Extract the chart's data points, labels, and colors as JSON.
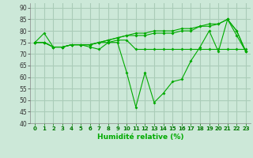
{
  "title": "",
  "xlabel": "Humidité relative (%)",
  "ylabel": "",
  "background_color": "#cce8d8",
  "grid_color": "#aaccb8",
  "line_color": "#00aa00",
  "xlim": [
    -0.5,
    23.5
  ],
  "ylim": [
    40,
    92
  ],
  "yticks": [
    40,
    45,
    50,
    55,
    60,
    65,
    70,
    75,
    80,
    85,
    90
  ],
  "xticks": [
    0,
    1,
    2,
    3,
    4,
    5,
    6,
    7,
    8,
    9,
    10,
    11,
    12,
    13,
    14,
    15,
    16,
    17,
    18,
    19,
    20,
    21,
    22,
    23
  ],
  "series": [
    [
      75,
      79,
      73,
      73,
      74,
      74,
      73,
      72,
      75,
      75,
      62,
      47,
      62,
      49,
      53,
      58,
      59,
      67,
      73,
      80,
      71,
      85,
      78,
      71
    ],
    [
      75,
      75,
      73,
      73,
      74,
      74,
      74,
      75,
      75,
      76,
      76,
      72,
      72,
      72,
      72,
      72,
      72,
      72,
      72,
      72,
      72,
      72,
      72,
      72
    ],
    [
      75,
      75,
      73,
      73,
      74,
      74,
      74,
      75,
      76,
      77,
      78,
      79,
      79,
      80,
      80,
      80,
      81,
      81,
      82,
      82,
      83,
      85,
      80,
      71
    ],
    [
      75,
      75,
      73,
      73,
      74,
      74,
      74,
      75,
      76,
      77,
      78,
      78,
      78,
      79,
      79,
      79,
      80,
      80,
      82,
      83,
      83,
      85,
      80,
      71
    ]
  ]
}
